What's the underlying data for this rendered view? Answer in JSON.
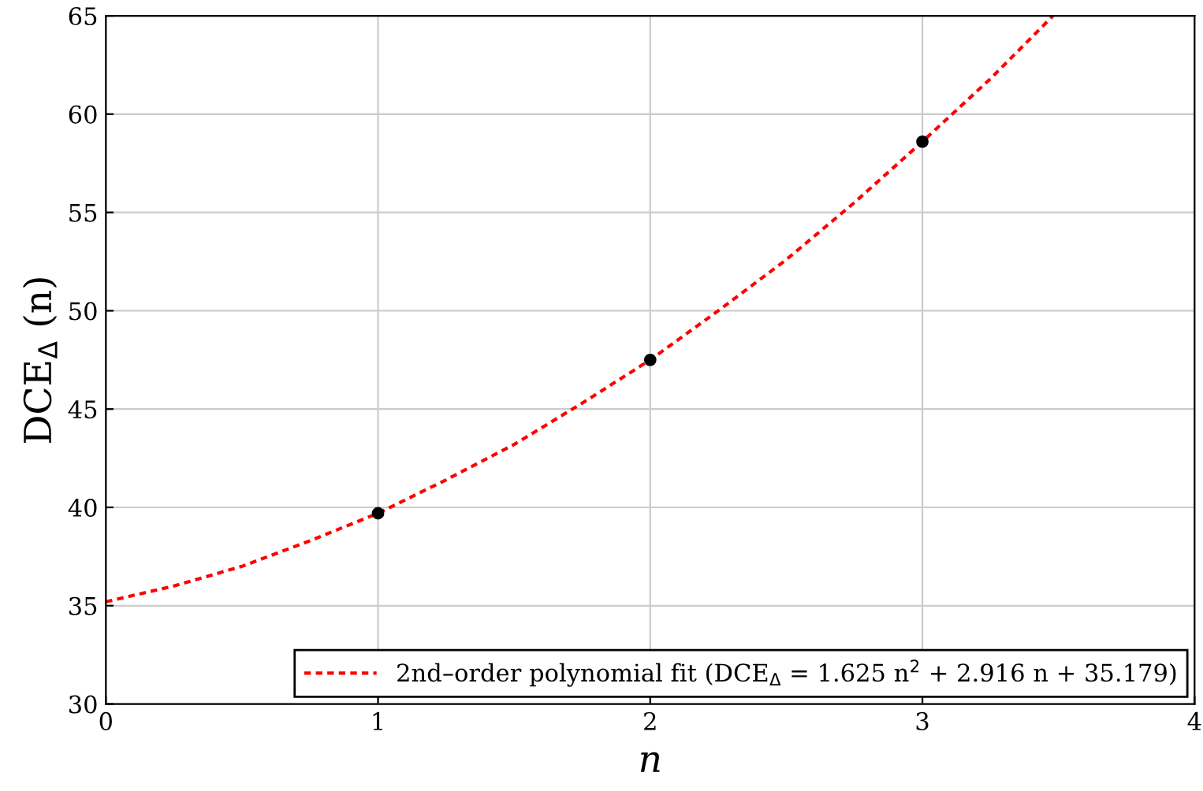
{
  "chart_data": {
    "type": "scatter",
    "xlabel": "n",
    "ylabel": "DCE$_{Δ}$ (n)",
    "xlim": [
      0,
      4
    ],
    "ylim": [
      30,
      65
    ],
    "xticks": [
      0,
      1,
      2,
      3,
      4
    ],
    "yticks": [
      30,
      35,
      40,
      45,
      50,
      55,
      60,
      65
    ],
    "grid": true,
    "legend": "bottom right",
    "marker": "circle",
    "series": [
      {
        "type": "line",
        "name": "2nd–order polynomial fit (DCE$_{Δ}$ = 1.625 n$^{2}$ + 2.916 n + 35.179)",
        "color": "#ff0000",
        "line_style": "dotted",
        "marker": "none",
        "x": [
          0,
          0.25,
          0.5,
          0.75,
          1,
          1.25,
          1.5,
          1.75,
          2,
          2.25,
          2.5,
          2.75,
          3,
          3.25,
          3.48
        ],
        "values": [
          35.2,
          36.0,
          37.0,
          38.3,
          39.7,
          41.4,
          43.2,
          45.3,
          47.5,
          50.0,
          52.6,
          55.5,
          58.6,
          61.8,
          65.0
        ]
      },
      {
        "color": "#000000",
        "x": [
          1,
          2,
          3
        ],
        "values": [
          39.7,
          47.5,
          58.6
        ]
      }
    ]
  }
}
